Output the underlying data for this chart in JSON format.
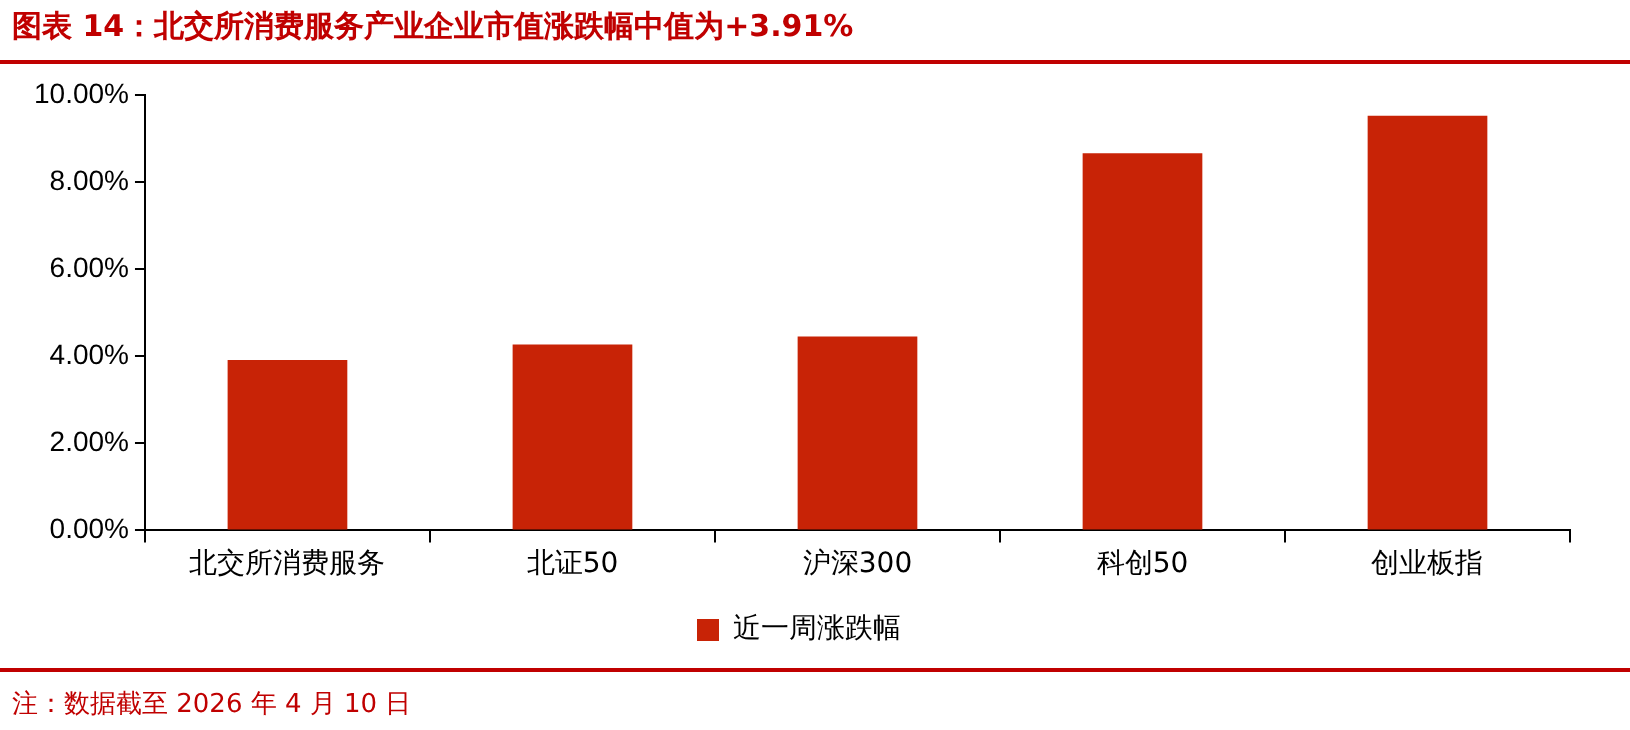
{
  "chart_data": {
    "type": "bar",
    "title": "图表 14：北交所消费服务产业企业市值涨跌幅中值为+3.91%",
    "categories": [
      "北交所消费服务",
      "北证50",
      "沪深300",
      "科创50",
      "创业板指"
    ],
    "series": [
      {
        "name": "近一周涨跌幅",
        "color": "#c82306",
        "values": [
          3.91,
          4.27,
          4.45,
          8.66,
          9.52
        ]
      }
    ],
    "ylim": [
      0,
      10
    ],
    "yticks": [
      {
        "value": 0,
        "label": "0.00%"
      },
      {
        "value": 2,
        "label": "2.00%"
      },
      {
        "value": 4,
        "label": "4.00%"
      },
      {
        "value": 6,
        "label": "6.00%"
      },
      {
        "value": 8,
        "label": "8.00%"
      },
      {
        "value": 10,
        "label": "10.00%"
      }
    ],
    "grid": false,
    "legend": "bottom",
    "annotations": [
      "注：数据截至 2026 年 4 月 10 日"
    ]
  }
}
